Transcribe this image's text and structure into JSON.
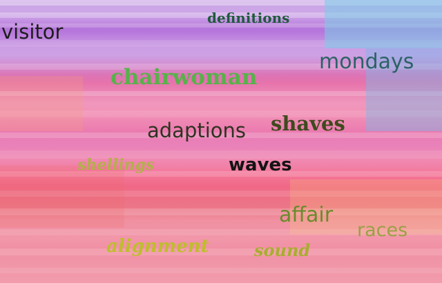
{
  "words": [
    {
      "text": "definitions",
      "color": "#1f5a3d"
    },
    {
      "text": "visitor",
      "color": "#1d1d1d"
    },
    {
      "text": "mondays",
      "color": "#2d6266"
    },
    {
      "text": "chairwoman",
      "color": "#58b14a"
    },
    {
      "text": "adaptions",
      "color": "#2f3320"
    },
    {
      "text": "shaves",
      "color": "#3f4a1d"
    },
    {
      "text": "shellings",
      "color": "#b2b04a"
    },
    {
      "text": "waves",
      "color": "#141414"
    },
    {
      "text": "affair",
      "color": "#6a8b2c"
    },
    {
      "text": "races",
      "color": "#9aa045"
    },
    {
      "text": "alignment",
      "color": "#bebe2c"
    },
    {
      "text": "sound",
      "color": "#a8ae2f"
    }
  ]
}
